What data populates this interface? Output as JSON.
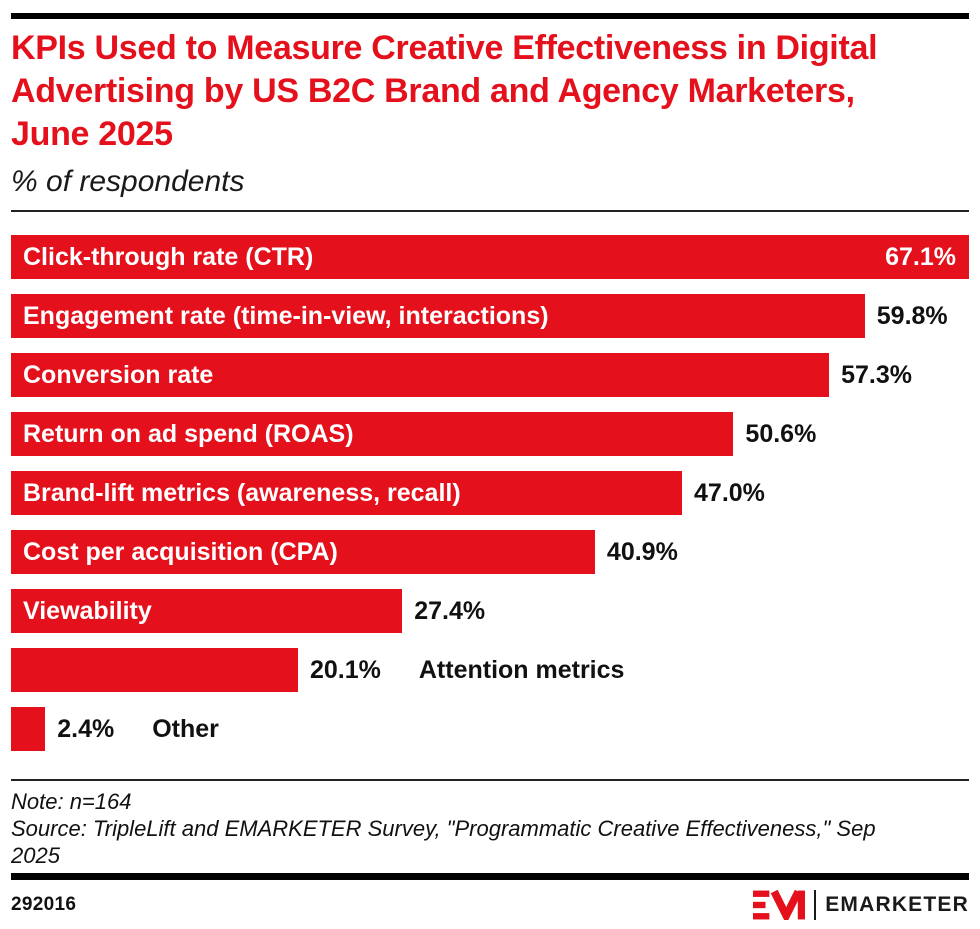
{
  "header": {
    "title": "KPIs Used to Measure Creative Effectiveness in Digital Advertising by US B2C Brand and Agency Marketers, June 2025",
    "subtitle": "% of respondents"
  },
  "chart_data": {
    "type": "bar",
    "orientation": "horizontal",
    "title": "KPIs Used to Measure Creative Effectiveness in Digital Advertising by US B2C Brand and Agency Marketers, June 2025",
    "unit": "% of respondents",
    "xlim": [
      0,
      67.1
    ],
    "grid": false,
    "legend": "none",
    "bar_color": "#E4111C",
    "categories": [
      "Click-through rate (CTR)",
      "Engagement rate (time-in-view, interactions)",
      "Conversion rate",
      "Return on ad spend (ROAS)",
      "Brand-lift metrics (awareness, recall)",
      "Cost per acquisition (CPA)",
      "Viewability",
      "Attention metrics",
      "Other"
    ],
    "values": [
      67.1,
      59.8,
      57.3,
      50.6,
      47.0,
      40.9,
      27.4,
      20.1,
      2.4
    ],
    "value_labels": [
      "67.1%",
      "59.8%",
      "57.3%",
      "50.6%",
      "47.0%",
      "40.9%",
      "27.4%",
      "20.1%",
      "2.4%"
    ],
    "label_placement": [
      "inside",
      "inside",
      "inside",
      "inside",
      "inside",
      "inside",
      "inside",
      "outside",
      "outside"
    ],
    "value_placement": [
      "inside",
      "outside",
      "outside",
      "outside",
      "outside",
      "outside",
      "outside",
      "outside",
      "outside"
    ]
  },
  "footer": {
    "note": "Note: n=164",
    "source": "Source: TripleLift and EMARKETER Survey, \"Programmatic Creative Effectiveness,\" Sep 2025",
    "chart_id": "292016",
    "brand_name": "EMARKETER"
  },
  "colors": {
    "brand_red": "#E4111C",
    "text_black": "#111111"
  }
}
